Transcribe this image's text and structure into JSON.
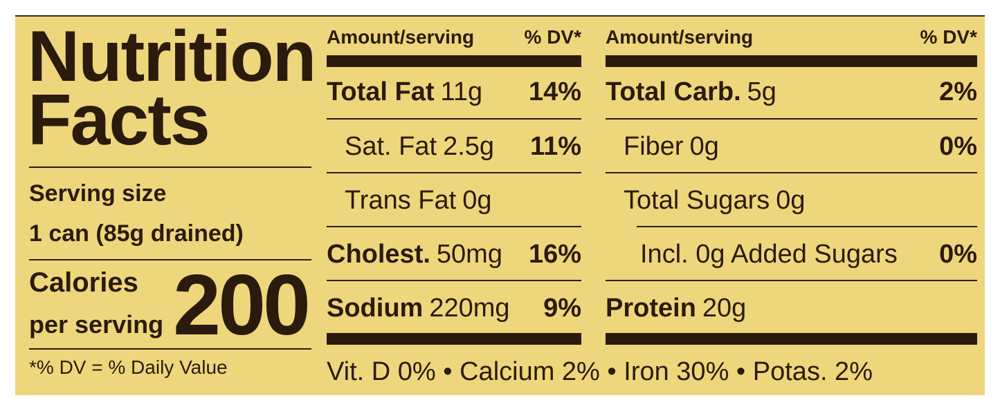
{
  "title_line1": "Nutrition",
  "title_line2": "Facts",
  "serving_size_label": "Serving size",
  "serving_size": "1 can (85g drained)",
  "calories_label_line1": "Calories",
  "calories_label_line2": "per serving",
  "calories": 200,
  "footnote": "*% DV = % Daily Value",
  "columns": [
    {
      "header_amount": "Amount/serving",
      "header_dv": "% DV*",
      "rows": [
        {
          "name": "Total Fat",
          "amount": "11g",
          "dv": "14%"
        },
        {
          "name": "Sat. Fat",
          "amount": "2.5g",
          "dv": "11%"
        },
        {
          "name": "Trans Fat",
          "amount": "0g"
        },
        {
          "name": "Cholest.",
          "amount": "50mg",
          "dv": "16%"
        },
        {
          "name": "Sodium",
          "amount": "220mg",
          "dv": "9%"
        }
      ]
    },
    {
      "header_amount": "Amount/serving",
      "header_dv": "% DV*",
      "rows": [
        {
          "name": "Total Carb.",
          "amount": "5g",
          "dv": "2%"
        },
        {
          "name": "Fiber",
          "amount": "0g",
          "dv": "0%"
        },
        {
          "name": "Total Sugars",
          "amount": "0g"
        },
        {
          "name": "Incl. 0g Added Sugars",
          "dv": "0%"
        },
        {
          "name": "Protein",
          "amount": "20g"
        }
      ]
    }
  ],
  "vitamins": "Vit. D 0% • Calcium 2% • Iron 30% • Potas. 2%"
}
